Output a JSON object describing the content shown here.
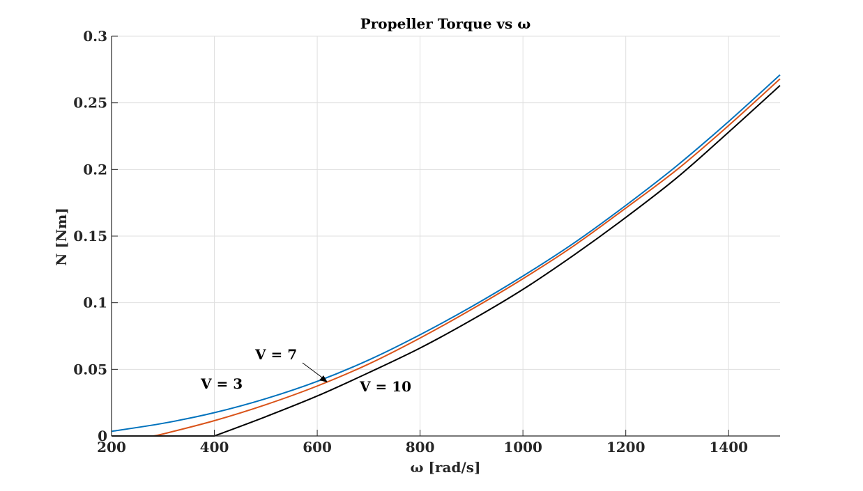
{
  "chart_data": {
    "type": "line",
    "title": "Propeller Torque vs ω",
    "xlabel": "ω [rad/s]",
    "ylabel": "N [Nm]",
    "xlim": [
      200,
      1500
    ],
    "ylim": [
      0,
      0.3
    ],
    "xticks": [
      200,
      400,
      600,
      800,
      1000,
      1200,
      1400
    ],
    "xtick_labels": [
      "200",
      "400",
      "600",
      "800",
      "1000",
      "1200",
      "1400"
    ],
    "yticks": [
      0,
      0.05,
      0.1,
      0.15,
      0.2,
      0.25,
      0.3
    ],
    "ytick_labels": [
      "0",
      "0.05",
      "0.1",
      "0.15",
      "0.2",
      "0.25",
      "0.3"
    ],
    "grid": true,
    "series": [
      {
        "name": "V = 3",
        "color": "#0072BD",
        "x": [
          200,
          300,
          400,
          500,
          600,
          700,
          800,
          900,
          1000,
          1100,
          1200,
          1300,
          1400,
          1500
        ],
        "y": [
          0.0035,
          0.0095,
          0.0175,
          0.028,
          0.041,
          0.057,
          0.076,
          0.097,
          0.12,
          0.145,
          0.173,
          0.203,
          0.236,
          0.271
        ]
      },
      {
        "name": "V = 7",
        "color": "#D95319",
        "x": [
          280,
          300,
          400,
          500,
          600,
          700,
          800,
          900,
          1000,
          1100,
          1200,
          1300,
          1400,
          1500
        ],
        "y": [
          0,
          0.0015,
          0.0115,
          0.0235,
          0.0375,
          0.054,
          0.0735,
          0.095,
          0.118,
          0.143,
          0.171,
          0.2,
          0.233,
          0.268
        ]
      },
      {
        "name": "V = 10",
        "color": "#000000",
        "x": [
          200,
          400,
          500,
          600,
          700,
          800,
          900,
          1000,
          1100,
          1200,
          1300,
          1400,
          1500
        ],
        "y": [
          0,
          0,
          0.0145,
          0.03,
          0.0475,
          0.066,
          0.087,
          0.11,
          0.136,
          0.164,
          0.194,
          0.228,
          0.263
        ]
      }
    ],
    "annotations": [
      {
        "text": "V = 3"
      },
      {
        "text": "V = 7"
      },
      {
        "text": "V = 10"
      }
    ]
  }
}
